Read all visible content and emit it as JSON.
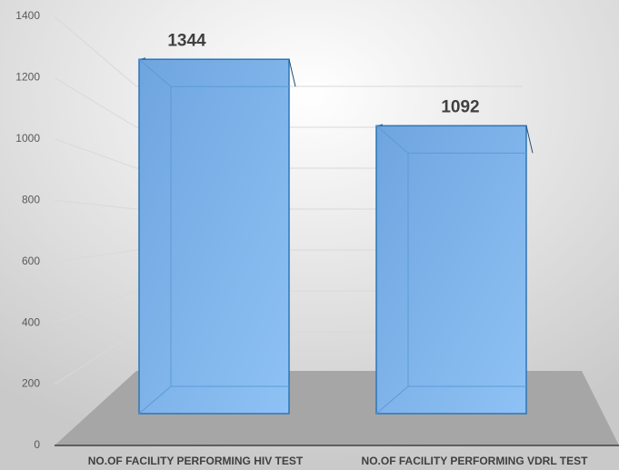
{
  "chart_data": {
    "type": "bar3d",
    "categories": [
      "NO.OF FACILITY PERFORMING HIV TEST",
      "NO.OF FACILITY PERFORMING VDRL TEST"
    ],
    "values": [
      1344,
      1092
    ],
    "color": "#7fb3ea",
    "ylim": [
      0,
      1400
    ],
    "yticks": [
      0,
      200,
      400,
      600,
      800,
      1000,
      1200,
      1400
    ],
    "grid": true
  }
}
